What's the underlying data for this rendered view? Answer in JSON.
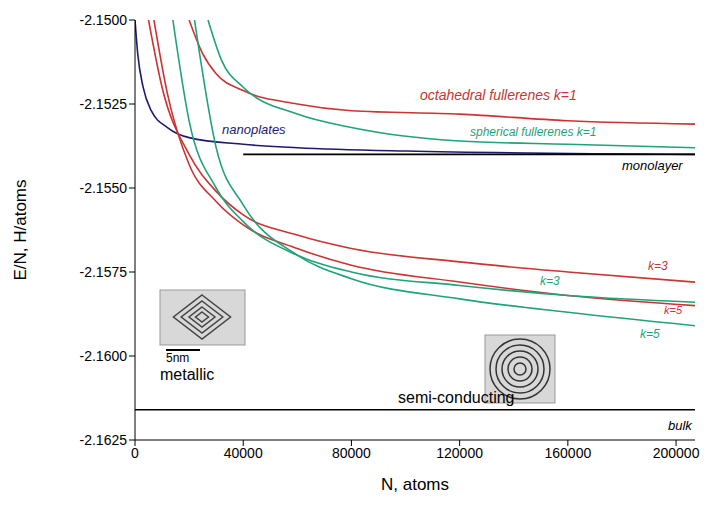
{
  "chart_data": {
    "type": "line",
    "x_label": "N, atoms",
    "y_label": "E/N, H/atoms",
    "xlim": [
      0,
      207000
    ],
    "xticks": [
      0,
      40000,
      80000,
      120000,
      160000,
      200000
    ],
    "ylim": [
      -2.1625,
      -2.15
    ],
    "yticks": [
      {
        "value": -2.15,
        "label": "-2.1500"
      },
      -2.1525,
      {
        "value": -2.155,
        "label": "-2.1550"
      },
      -2.1575,
      {
        "value": -2.16,
        "label": "-2.1600"
      },
      -2.1625
    ],
    "grid": false,
    "series": [
      {
        "name": "octahedral fullerenes k=1",
        "color": "#cc3333",
        "x": [
          20000,
          25000,
          30000,
          40000,
          60000,
          80000,
          120000,
          160000,
          207000
        ],
        "values": [
          -2.15,
          -2.151,
          -2.1516,
          -2.1521,
          -2.1525,
          -2.1527,
          -2.1528,
          -2.153,
          -2.1531
        ]
      },
      {
        "name": "spherical fullerenes k=1",
        "color": "#1fa37a",
        "x": [
          27000,
          32000,
          40000,
          60000,
          80000,
          120000,
          160000,
          207000
        ],
        "values": [
          -2.15,
          -2.1512,
          -2.152,
          -2.1528,
          -2.1532,
          -2.1536,
          -2.1537,
          -2.1538
        ]
      },
      {
        "name": "nanoplates",
        "color": "#1c1c6e",
        "x": [
          0,
          1000,
          3000,
          6000,
          12000,
          20000,
          40000,
          60000,
          100000,
          207000
        ],
        "values": [
          -2.15,
          -2.151,
          -2.152,
          -2.1527,
          -2.1532,
          -2.1535,
          -2.1537,
          -2.1538,
          -2.1539,
          -2.154
        ]
      },
      {
        "name": "monolayer",
        "color": "#000000",
        "x": [
          40000,
          207000
        ],
        "values": [
          -2.154,
          -2.154
        ]
      },
      {
        "name": "k=3",
        "color": "#cc3333",
        "x": [
          5000,
          10000,
          20000,
          30000,
          40000,
          60000,
          80000,
          120000,
          160000,
          207000
        ],
        "values": [
          -2.15,
          -2.152,
          -2.154,
          -2.1551,
          -2.1558,
          -2.1564,
          -2.1568,
          -2.1572,
          -2.1575,
          -2.1578
        ]
      },
      {
        "name": "k=5",
        "color": "#cc3333",
        "x": [
          7000,
          12000,
          20000,
          30000,
          40000,
          60000,
          80000,
          120000,
          160000,
          207000
        ],
        "values": [
          -2.15,
          -2.1522,
          -2.1543,
          -2.1554,
          -2.1561,
          -2.1568,
          -2.1573,
          -2.1578,
          -2.1582,
          -2.1585
        ]
      },
      {
        "name": "k=3",
        "color": "#1fa37a",
        "x": [
          14000,
          20000,
          30000,
          40000,
          60000,
          80000,
          120000,
          160000,
          207000
        ],
        "values": [
          -2.15,
          -2.153,
          -2.155,
          -2.156,
          -2.157,
          -2.1575,
          -2.1579,
          -2.1582,
          -2.1584
        ]
      },
      {
        "name": "k=5",
        "color": "#1fa37a",
        "x": [
          22000,
          30000,
          40000,
          60000,
          80000,
          120000,
          160000,
          207000
        ],
        "values": [
          -2.15,
          -2.1538,
          -2.1555,
          -2.157,
          -2.1577,
          -2.1583,
          -2.1587,
          -2.1591
        ]
      },
      {
        "name": "bulk",
        "color": "#000000",
        "x": [
          0,
          207000
        ],
        "values": [
          -2.1616,
          -2.1616
        ]
      }
    ],
    "annotations": [
      "metallic",
      "semi-conducting",
      "5nm"
    ]
  }
}
